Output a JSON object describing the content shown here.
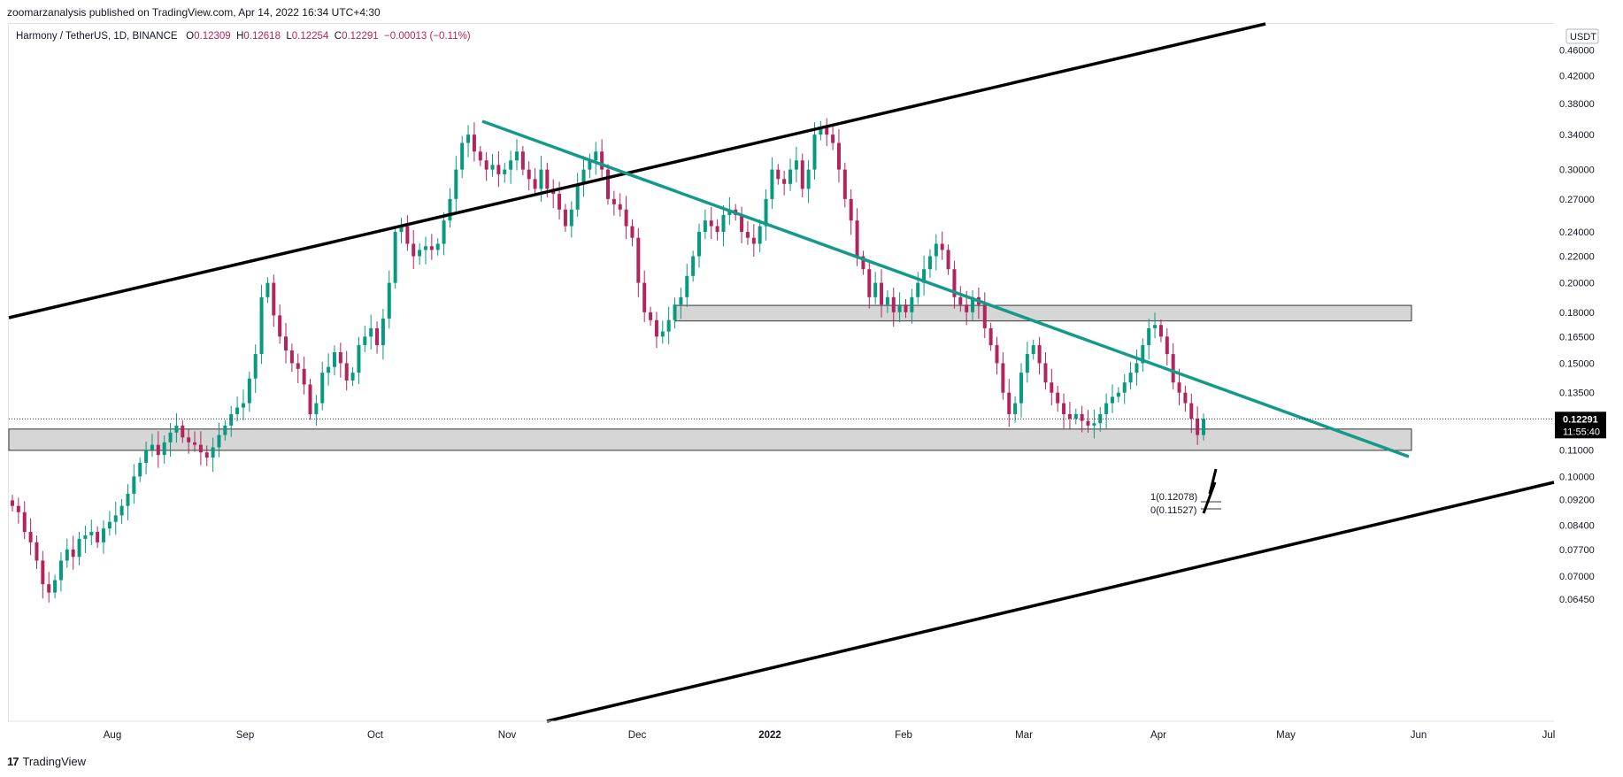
{
  "header": {
    "published": "zoomarzanalysis published on TradingView.com, Apr 14, 2022 16:34 UTC+4:30"
  },
  "legend": {
    "symbol": "Harmony / TetherUS, 1D, BINANCE",
    "open_label": "O",
    "open": "0.12309",
    "high_label": "H",
    "high": "0.12618",
    "low_label": "L",
    "low": "0.12254",
    "close_label": "C",
    "close": "0.12291",
    "change": "−0.00013 (−0.11%)"
  },
  "footer": {
    "logo": "17",
    "brand": "TradingView"
  },
  "colors": {
    "up": "#089981",
    "down": "#b2245e",
    "channel": "#000000",
    "trendline": "#14998a",
    "zone_fill": "#d6d6d6",
    "price_tag": "#000000"
  },
  "chart_data": {
    "type": "candlestick",
    "symbol": "Harmony / TetherUS",
    "interval": "1D",
    "exchange": "BINANCE",
    "y_scale": "log",
    "currency": "USDT",
    "y_ticks": [
      "0.46000",
      "0.42000",
      "0.38000",
      "0.34000",
      "0.30000",
      "0.27000",
      "0.24000",
      "0.22000",
      "0.20000",
      "0.18000",
      "0.16500",
      "0.15000",
      "0.13500",
      "0.12000",
      "0.11000",
      "0.10000",
      "0.09200",
      "0.08400",
      "0.07700",
      "0.07000",
      "0.06450"
    ],
    "x_ticks": [
      "Aug",
      "Sep",
      "Oct",
      "Nov",
      "Dec",
      "2022",
      "Feb",
      "Mar",
      "Apr",
      "May",
      "Jun",
      "Jul"
    ],
    "last_price": "0.12291",
    "countdown": "11:55:40",
    "closes": [
      0.09,
      0.088,
      0.082,
      0.079,
      0.074,
      0.068,
      0.066,
      0.069,
      0.074,
      0.077,
      0.075,
      0.08,
      0.081,
      0.082,
      0.079,
      0.083,
      0.085,
      0.087,
      0.09,
      0.094,
      0.1,
      0.105,
      0.11,
      0.112,
      0.108,
      0.113,
      0.117,
      0.12,
      0.115,
      0.113,
      0.112,
      0.109,
      0.107,
      0.111,
      0.116,
      0.12,
      0.125,
      0.128,
      0.13,
      0.142,
      0.155,
      0.19,
      0.2,
      0.178,
      0.165,
      0.157,
      0.15,
      0.147,
      0.139,
      0.125,
      0.13,
      0.145,
      0.148,
      0.156,
      0.15,
      0.141,
      0.145,
      0.16,
      0.165,
      0.17,
      0.16,
      0.176,
      0.2,
      0.24,
      0.245,
      0.23,
      0.22,
      0.225,
      0.228,
      0.225,
      0.23,
      0.25,
      0.27,
      0.3,
      0.33,
      0.34,
      0.32,
      0.31,
      0.3,
      0.305,
      0.295,
      0.3,
      0.31,
      0.32,
      0.3,
      0.29,
      0.28,
      0.3,
      0.28,
      0.275,
      0.26,
      0.245,
      0.26,
      0.285,
      0.3,
      0.31,
      0.32,
      0.3,
      0.27,
      0.265,
      0.26,
      0.245,
      0.235,
      0.2,
      0.18,
      0.175,
      0.165,
      0.168,
      0.175,
      0.185,
      0.19,
      0.205,
      0.22,
      0.24,
      0.25,
      0.245,
      0.24,
      0.255,
      0.26,
      0.255,
      0.24,
      0.235,
      0.23,
      0.245,
      0.27,
      0.3,
      0.29,
      0.285,
      0.3,
      0.31,
      0.28,
      0.3,
      0.34,
      0.35,
      0.34,
      0.33,
      0.3,
      0.27,
      0.25,
      0.22,
      0.21,
      0.19,
      0.2,
      0.185,
      0.19,
      0.18,
      0.185,
      0.18,
      0.19,
      0.2,
      0.21,
      0.22,
      0.23,
      0.225,
      0.21,
      0.19,
      0.185,
      0.18,
      0.19,
      0.185,
      0.17,
      0.16,
      0.15,
      0.135,
      0.125,
      0.13,
      0.145,
      0.155,
      0.16,
      0.15,
      0.14,
      0.135,
      0.13,
      0.125,
      0.123,
      0.125,
      0.122,
      0.12,
      0.121,
      0.125,
      0.13,
      0.133,
      0.135,
      0.14,
      0.145,
      0.15,
      0.16,
      0.17,
      0.172,
      0.165,
      0.155,
      0.14,
      0.135,
      0.13,
      0.123,
      0.116,
      0.1229
    ]
  },
  "drawings": {
    "fib_labels": [
      "1(0.12078)",
      "0(0.11527)"
    ]
  }
}
